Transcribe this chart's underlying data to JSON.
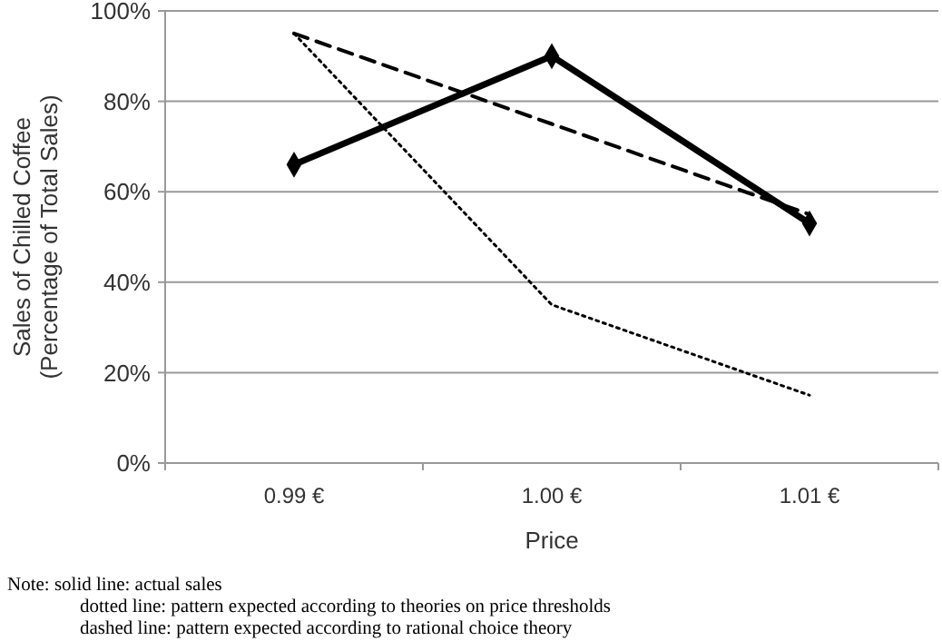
{
  "chart_data": {
    "type": "line",
    "xlabel": "Price",
    "ylabel": "Sales of Chilled Coffee\n(Percentage of Total Sales)",
    "categories": [
      "0.99 €",
      "1.00 €",
      "1.01 €"
    ],
    "series": [
      {
        "color": "#000000",
        "values": [
          66,
          90,
          53
        ],
        "marker": "diamond",
        "line_style": "solid"
      },
      {
        "color": "#000000",
        "values": [
          95,
          35,
          15
        ],
        "marker": "none",
        "line_style": "dotted"
      },
      {
        "color": "#000000",
        "values": [
          95,
          75,
          55
        ],
        "marker": "none",
        "line_style": "dashed"
      }
    ],
    "ylim": [
      0,
      100
    ],
    "yticks": [
      {
        "value": 0,
        "label": "0%"
      },
      {
        "value": 20,
        "label": "20%"
      },
      {
        "value": 40,
        "label": "40%"
      },
      {
        "value": 60,
        "label": "60%"
      },
      {
        "value": 80,
        "label": "80%"
      },
      {
        "value": 100,
        "label": "100%"
      }
    ],
    "grid": "y",
    "annotations": [
      "Note:  solid line: actual sales",
      "dotted line: pattern expected according to theories on price thresholds",
      "dashed line: pattern expected according to rational choice theory"
    ]
  }
}
